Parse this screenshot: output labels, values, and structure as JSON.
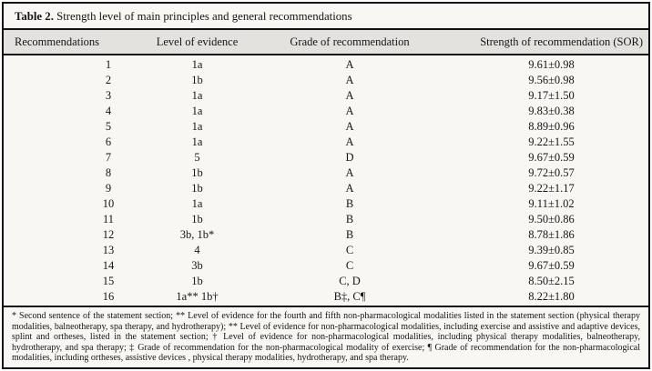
{
  "title": {
    "label": "Table 2.",
    "text": " Strength level of main principles and general recommendations"
  },
  "table": {
    "columns": [
      "Recommendations",
      "Level of evidence",
      "Grade of recommendation",
      "Strength of recommendation (SOR)"
    ],
    "rows": [
      {
        "no": "1",
        "evidence": "1a",
        "grade": "A",
        "sor": "9.61±0.98"
      },
      {
        "no": "2",
        "evidence": "1b",
        "grade": "A",
        "sor": "9.56±0.98"
      },
      {
        "no": "3",
        "evidence": "1a",
        "grade": "A",
        "sor": "9.17±1.50"
      },
      {
        "no": "4",
        "evidence": "1a",
        "grade": "A",
        "sor": "9.83±0.38"
      },
      {
        "no": "5",
        "evidence": "1a",
        "grade": "A",
        "sor": "8.89±0.96"
      },
      {
        "no": "6",
        "evidence": "1a",
        "grade": "A",
        "sor": "9.22±1.55"
      },
      {
        "no": "7",
        "evidence": "5",
        "grade": "D",
        "sor": "9.67±0.59"
      },
      {
        "no": "8",
        "evidence": "1b",
        "grade": "A",
        "sor": "9.72±0.57"
      },
      {
        "no": "9",
        "evidence": "1b",
        "grade": "A",
        "sor": "9.22±1.17"
      },
      {
        "no": "10",
        "evidence": "1a",
        "grade": "B",
        "sor": "9.11±1.02"
      },
      {
        "no": "11",
        "evidence": "1b",
        "grade": "B",
        "sor": "9.50±0.86"
      },
      {
        "no": "12",
        "evidence": "3b, 1b*",
        "grade": "B",
        "sor": "8.78±1.86"
      },
      {
        "no": "13",
        "evidence": "4",
        "grade": "C",
        "sor": "9.39±0.85"
      },
      {
        "no": "14",
        "evidence": "3b",
        "grade": "C",
        "sor": "9.67±0.59"
      },
      {
        "no": "15",
        "evidence": "1b",
        "grade": "C, D",
        "sor": "8.50±2.15"
      },
      {
        "no": "16",
        "evidence": "1a** 1b†",
        "grade": "B‡, C¶",
        "sor": "8.22±1.80"
      }
    ]
  },
  "footnote": "* Second sentence of the statement section; ** Level of evidence for the fourth and fifth non-pharmacological modalities listed in the statement section (physical therapy modalities, balneotherapy, spa therapy, and hydrotherapy); ** Level of evidence for non-pharmacological modalities, including exercise and assistive and adaptive devices, splint and ortheses, listed in the statement section; † Level of evidence for non-pharmacological modalities, including physical therapy modalities, balneotherapy, hydrotherapy, and spa therapy; ‡ Grade of recommendation for the non-pharmacological modality of exercise; ¶ Grade of recommendation for the non-pharmacological modalities, including ortheses, assistive devices , physical therapy modalities, hydrotherapy, and spa therapy.",
  "colors": {
    "border": "#131313",
    "paper_bg": "#f8f7f4",
    "header_bg": "#e3e2df",
    "ink": "#151515"
  }
}
